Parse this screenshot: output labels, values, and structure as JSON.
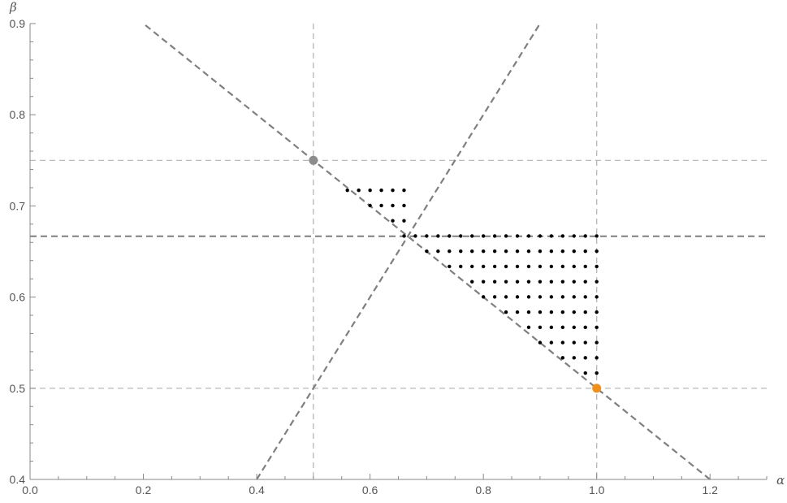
{
  "chart_data": {
    "type": "scatter",
    "xlabel": "α",
    "ylabel": "β",
    "xlim": [
      0,
      1.3
    ],
    "ylim": [
      0.4,
      0.9
    ],
    "x_ticks": [
      "0.0",
      "0.2",
      "0.4",
      "0.6",
      "0.8",
      "1.0",
      "1.2"
    ],
    "y_ticks": [
      "0.4",
      "0.5",
      "0.6",
      "0.7",
      "0.8",
      "0.9"
    ],
    "grid": false,
    "reference_lines": {
      "vertical_light": [
        0.5,
        1.0
      ],
      "horizontal_light": [
        0.75,
        0.5
      ],
      "horizontal_dark": [
        0.6667
      ],
      "line_through_origin": {
        "slope": 1,
        "intercept": 0
      },
      "descending_line": {
        "slope": -0.5,
        "intercept": 1
      }
    },
    "highlight_points": [
      {
        "x": 0.5,
        "y": 0.75,
        "color": "#8c8c8c"
      },
      {
        "x": 1.0,
        "y": 0.5,
        "color": "#f0901c"
      }
    ],
    "dot_grid": {
      "x_start": 0.5,
      "x_step": 0.02,
      "y_start": 0.5167,
      "y_step": 0.0167,
      "region": "β ≥ 1 − α/2 within 0.5 ≤ α ≤ 1, β ≤ 0.7167 for α < 2/3 and β ≤ 2/3 for α ≥ 2/3",
      "color": "#000000"
    },
    "colors": {
      "axis": "#888888",
      "ref_light": "#b0b0b0",
      "ref_dark": "#7f7f7f"
    }
  }
}
